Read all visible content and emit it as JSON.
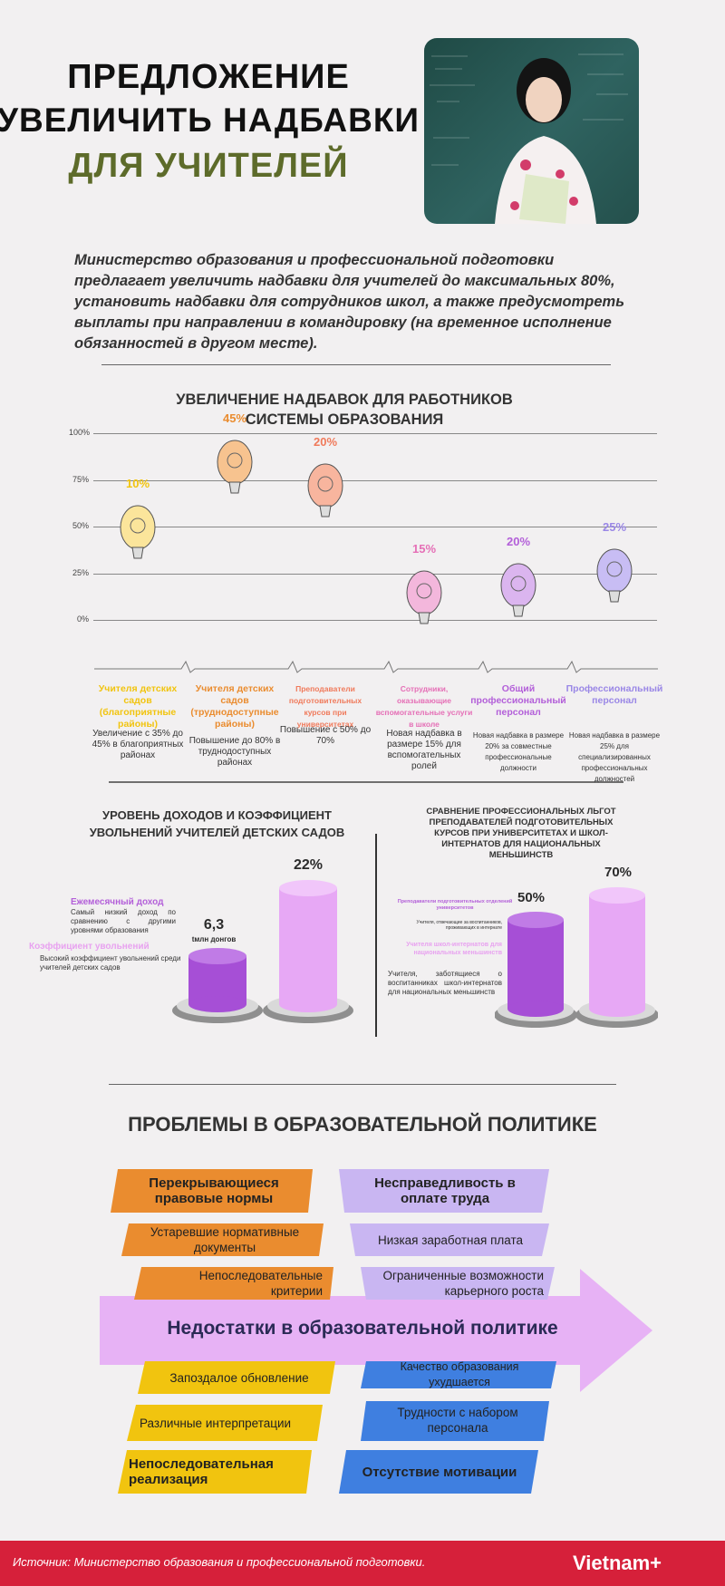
{
  "header": {
    "title_line1": "ПРЕДЛОЖЕНИЕ",
    "title_line2": "УВЕЛИЧИТЬ НАДБАВКИ",
    "title_line3": "ДЛЯ УЧИТЕЛЕЙ",
    "intro": "Министерство образования и  профессиональной подготовки предлагает увеличить надбавки для учителей до максимальных 80%, установить надбавки для сотрудников школ, а также предусмотреть выплаты при направлении в командировку (на временное исполнение обязанностей в другом месте)."
  },
  "colors": {
    "olive": "#5d6b2a",
    "yellow": "#f1c40f",
    "orange": "#ea8c2f",
    "salmon": "#f07a5b",
    "pink": "#e56fb6",
    "violet": "#b35fd9",
    "lavender": "#9a87e6",
    "red_footer": "#d6203a"
  },
  "chart_data": {
    "type": "bar",
    "title": "УВЕЛИЧЕНИЕ НАДБАВОК ДЛЯ РАБОТНИКОВ СИСТЕМЫ ОБРАЗОВАНИЯ",
    "ylim": [
      0,
      100
    ],
    "yticks": [
      "100%",
      "75%",
      "50%",
      "25%",
      "0%"
    ],
    "categories": [
      "Учителя детских садов (благоприятные районы)",
      "Учителя детских садов (труднодоступные районы)",
      "Преподаватели подготовительных курсов при университетах",
      "Сотрудники, оказывающие вспомогательные услуги в школе",
      "Общий профессиональный персонал",
      "Профессиональный персонал"
    ],
    "values": [
      10,
      45,
      20,
      15,
      20,
      25
    ],
    "value_labels": [
      "10%",
      "45%",
      "20%",
      "15%",
      "20%",
      "25%"
    ],
    "descriptions": [
      "Увеличение с 35% до 45% в благоприятных районах",
      "Повышение до 80% в труднодоступных районах",
      "Повышение с 50% до 70%",
      "Новая надбавка в размере 15% для вспомогательных ролей",
      "Новая надбавка в размере 20% за совместные профессиональные должности",
      "Новая надбавка в размере 25% для специализированных профессиональных должностей"
    ]
  },
  "income": {
    "title": "УРОВЕНЬ ДОХОДОВ И КОЭФФИЦИЕНТ УВОЛЬНЕНИЙ УЧИТЕЛЕЙ ДЕТСКИХ САДОВ",
    "monthly_label": "Ежемесячный доход",
    "monthly_desc": "Самый низкий доход по сравнению с другими уровнями образования",
    "turnover_label": "Коэффициент увольнений",
    "turnover_desc": "Высокий коэффициент увольнений среди учителей детских садов",
    "income_value": "6,3",
    "income_unit": "tмлн донгов",
    "turnover_value": "22%"
  },
  "benefits": {
    "title": "СРАВНЕНИЕ ПРОФЕССИОНАЛЬНЫХ ЛЬГОТ ПРЕПОДАВАТЕЛЕЙ ПОДГОТОВИТЕЛЬНЫХ КУРСОВ ПРИ УНИВЕРСИТЕТАХ И ШКОЛ-ИНТЕРНАТОВ ДЛЯ НАЦИОНАЛЬНЫХ МЕНЬШИНСТВ",
    "label1": "Преподаватели подготовительных отделений университетов",
    "label1_sub": "Учителя, отвечающие за воспитанников, проживающих в интернате",
    "label2": "Учителя школ-интернатов для национальных меньшинств",
    "label2_desc": "Учителя, заботящиеся о воспитанниках школ-интернатов для национальных меньшинств",
    "value1": "50%",
    "value2": "70%"
  },
  "problems": {
    "title": "ПРОБЛЕМЫ В ОБРАЗОВАТЕЛЬНОЙ ПОЛИТИКЕ",
    "arrow": "Недостатки в образовательной политике",
    "orange": [
      "Перекрывающиеся правовые нормы",
      "Устаревшие нормативные документы",
      "Непоследовательные критерии"
    ],
    "lavender": [
      "Несправедливость в оплате труда",
      "Низкая заработная плата",
      "Ограниченные возможности карьерного роста"
    ],
    "yellow": [
      "Запоздалое обновление",
      "Различные интерпретации",
      "Непоследовательная реализация"
    ],
    "blue": [
      "Качество образования ухудшается",
      "Трудности с набором персонала",
      "Отсутствие мотивации"
    ]
  },
  "footer": {
    "source": "Источник: Министерство образования и профессиональной подготовки.",
    "brand": "Vietnam+"
  }
}
